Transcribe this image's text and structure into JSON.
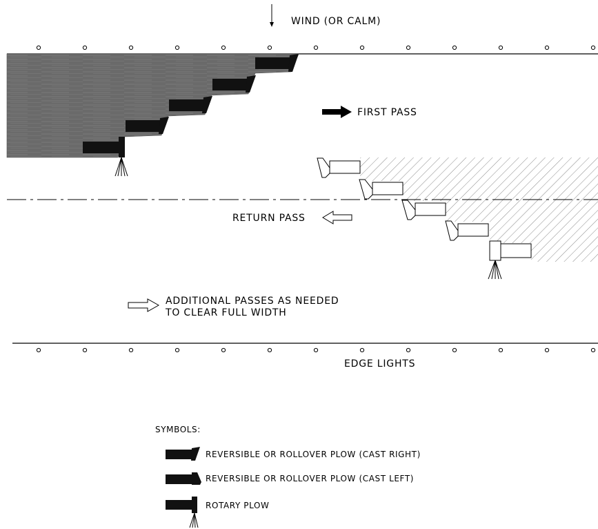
{
  "wind_label": "WIND (OR CALM)",
  "first_pass_label": "FIRST PASS",
  "return_pass_label": "RETURN PASS",
  "additional_line1": "ADDITIONAL PASSES AS NEEDED",
  "additional_line2": "TO CLEAR FULL WIDTH",
  "edge_lights_label": "EDGE LIGHTS",
  "legend": {
    "title": "SYMBOLS:",
    "items": [
      {
        "icon": "plow-cast-right-icon",
        "label": "REVERSIBLE OR ROLLOVER PLOW (CAST RIGHT)"
      },
      {
        "icon": "plow-cast-left-icon",
        "label": "REVERSIBLE OR ROLLOVER PLOW (CAST LEFT)"
      },
      {
        "icon": "rotary-plow-icon",
        "label": "ROTARY PLOW"
      }
    ]
  },
  "colors": {
    "ink": "#000000",
    "snow_fill": "#6b6b6b",
    "hatch": "#888888"
  }
}
